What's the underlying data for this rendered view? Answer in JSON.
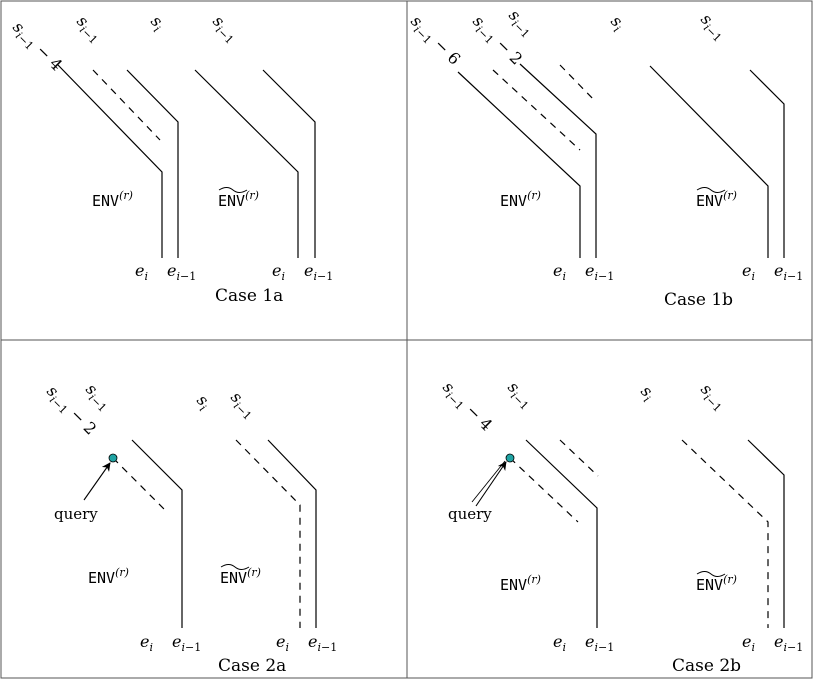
{
  "panels": [
    {
      "caption": "Case 1a",
      "labels": [
        "s_{i-1}-4",
        "s_{i-1}",
        "s_i",
        "s_{i-1}"
      ],
      "env_label": "ENV^(r)",
      "env_tilde_label": "ENV~^(r)",
      "edge_labels": [
        "e_i",
        "e_{i-1}",
        "e_i",
        "e_{i-1}"
      ]
    },
    {
      "caption": "Case 1b",
      "labels": [
        "s_{i-1}-6",
        "s_{i-1}-2",
        "s_{i-1}",
        "s_i",
        "s_{i-1}"
      ],
      "env_label": "ENV^(r)",
      "env_tilde_label": "ENV~^(r)",
      "edge_labels": [
        "e_i",
        "e_{i-1}",
        "e_i",
        "e_{i-1}"
      ]
    },
    {
      "caption": "Case 2a",
      "labels": [
        "s_{i-1}-2",
        "s_{i-1}",
        "s_i",
        "s_{i-1}"
      ],
      "query_label": "query",
      "env_label": "ENV^(r)",
      "env_tilde_label": "ENV~^(r)",
      "edge_labels": [
        "e_i",
        "e_{i-1}",
        "e_i",
        "e_{i-1}"
      ]
    },
    {
      "caption": "Case 2b",
      "labels": [
        "s_{i-1}-4",
        "s_{i-1}",
        "s_i",
        "s_{i-1}"
      ],
      "query_label": "query",
      "env_label": "ENV^(r)",
      "env_tilde_label": "ENV~^(r)",
      "edge_labels": [
        "e_i",
        "e_{i-1}",
        "e_i",
        "e_{i-1}"
      ]
    }
  ],
  "colors": {
    "line": "#000000",
    "query_point": "#1fa3a3",
    "border": "#555555"
  }
}
